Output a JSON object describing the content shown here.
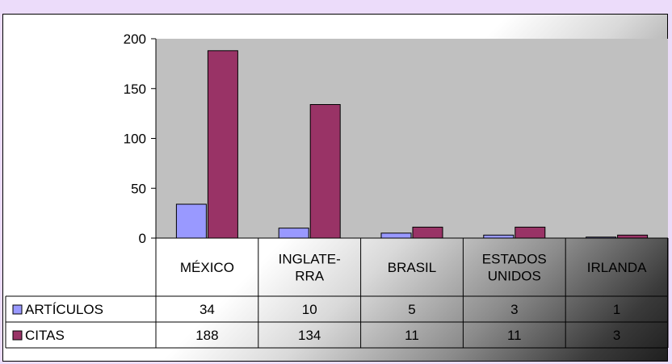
{
  "chart_data": {
    "type": "bar",
    "categories": [
      [
        "MÉXICO"
      ],
      [
        "INGLATE-",
        "RRA"
      ],
      [
        "BRASIL"
      ],
      [
        "ESTADOS",
        "UNIDOS"
      ],
      [
        "IRLANDA"
      ]
    ],
    "series": [
      {
        "name": "ARTÍCULOS",
        "values": [
          34,
          10,
          5,
          3,
          1
        ],
        "color": "#9999ff"
      },
      {
        "name": "CITAS",
        "values": [
          188,
          134,
          11,
          11,
          3
        ],
        "color": "#993366"
      }
    ],
    "y_ticks": [
      "0",
      "50",
      "100",
      "150",
      "200"
    ],
    "ylim": [
      0,
      200
    ],
    "grid": false,
    "legend": "data-table",
    "plot_background": "#c0c0c0"
  }
}
